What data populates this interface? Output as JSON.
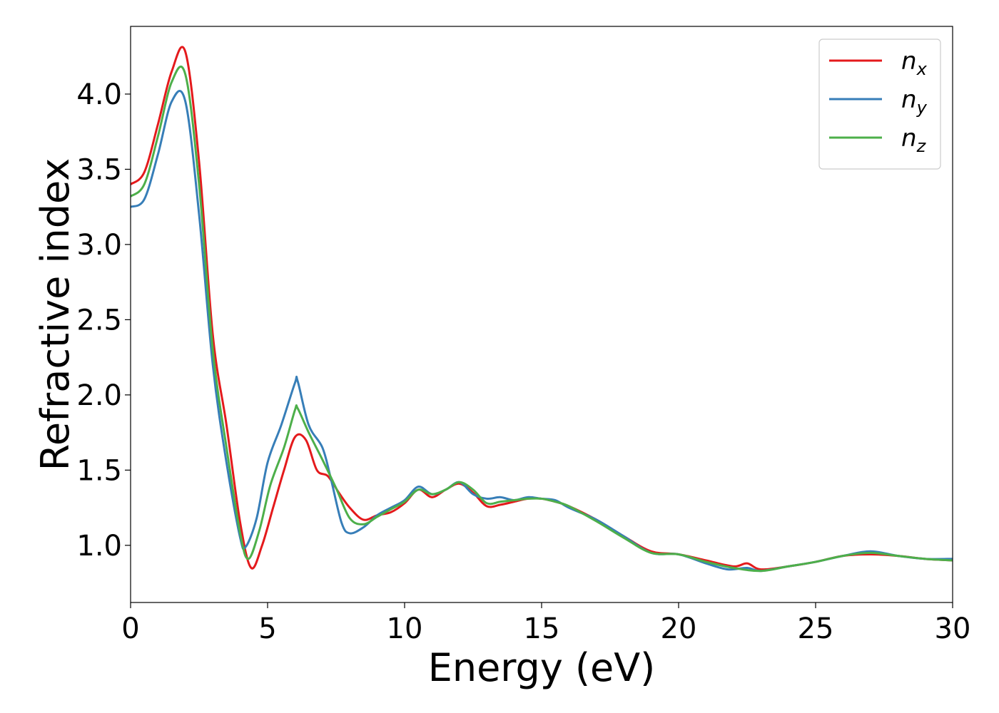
{
  "chart_data": {
    "type": "line",
    "xlabel": "Energy (eV)",
    "ylabel": "Refractive index",
    "xlim": [
      0,
      30
    ],
    "ylim": [
      0.62,
      4.45
    ],
    "xticks": [
      0,
      5,
      10,
      15,
      20,
      25,
      30
    ],
    "yticks": [
      1.0,
      1.5,
      2.0,
      2.5,
      3.0,
      3.5,
      4.0
    ],
    "xtick_labels": [
      "0",
      "5",
      "10",
      "15",
      "20",
      "25",
      "30"
    ],
    "ytick_labels": [
      "1.0",
      "1.5",
      "2.0",
      "2.5",
      "3.0",
      "3.5",
      "4.0"
    ],
    "grid": false,
    "legend_position": "top-right",
    "series": [
      {
        "name": "n",
        "subscript": "x",
        "color": "#e41a1c",
        "x": [
          0,
          0.5,
          1.0,
          1.5,
          2.0,
          2.5,
          3.0,
          3.5,
          4.0,
          4.4,
          4.8,
          5.2,
          5.6,
          6.0,
          6.4,
          6.8,
          7.2,
          7.6,
          8.0,
          8.5,
          9.0,
          9.5,
          10.0,
          10.5,
          11.0,
          11.5,
          12.0,
          12.5,
          13.0,
          13.5,
          14.0,
          14.5,
          15.0,
          15.5,
          16.0,
          17.0,
          18.0,
          19.0,
          20.0,
          21.0,
          22.0,
          22.5,
          23.0,
          24.0,
          25.0,
          26.0,
          27.0,
          28.0,
          29.0,
          30.0
        ],
        "y": [
          3.4,
          3.48,
          3.8,
          4.15,
          4.28,
          3.55,
          2.4,
          1.8,
          1.15,
          0.85,
          1.0,
          1.25,
          1.5,
          1.72,
          1.7,
          1.5,
          1.46,
          1.35,
          1.25,
          1.17,
          1.2,
          1.22,
          1.28,
          1.37,
          1.32,
          1.37,
          1.41,
          1.35,
          1.26,
          1.27,
          1.29,
          1.31,
          1.31,
          1.29,
          1.26,
          1.17,
          1.06,
          0.96,
          0.94,
          0.9,
          0.86,
          0.88,
          0.84,
          0.86,
          0.89,
          0.93,
          0.94,
          0.93,
          0.91,
          0.9
        ]
      },
      {
        "name": "n",
        "subscript": "y",
        "color": "#377eb8",
        "x": [
          0,
          0.5,
          1.0,
          1.5,
          2.0,
          2.5,
          3.0,
          3.5,
          4.0,
          4.2,
          4.6,
          5.0,
          5.5,
          6.0,
          6.1,
          6.5,
          7.0,
          7.3,
          7.7,
          8.0,
          8.5,
          9.0,
          9.5,
          10.0,
          10.5,
          11.0,
          11.5,
          12.0,
          12.5,
          13.0,
          13.5,
          14.0,
          14.5,
          15.0,
          15.5,
          16.0,
          17.0,
          18.0,
          19.0,
          20.0,
          21.0,
          21.8,
          22.5,
          23.0,
          24.0,
          25.0,
          26.0,
          27.0,
          28.0,
          29.0,
          30.0
        ],
        "y": [
          3.25,
          3.3,
          3.6,
          3.95,
          3.95,
          3.2,
          2.2,
          1.55,
          1.05,
          0.99,
          1.18,
          1.55,
          1.8,
          2.08,
          2.09,
          1.8,
          1.65,
          1.45,
          1.15,
          1.08,
          1.12,
          1.2,
          1.25,
          1.3,
          1.39,
          1.34,
          1.37,
          1.42,
          1.34,
          1.31,
          1.32,
          1.3,
          1.32,
          1.31,
          1.3,
          1.25,
          1.17,
          1.06,
          0.95,
          0.94,
          0.88,
          0.84,
          0.85,
          0.83,
          0.86,
          0.89,
          0.93,
          0.96,
          0.93,
          0.91,
          0.91
        ]
      },
      {
        "name": "n",
        "subscript": "z",
        "color": "#4daf4a",
        "x": [
          0,
          0.5,
          1.0,
          1.5,
          2.0,
          2.5,
          3.0,
          3.5,
          4.0,
          4.3,
          4.7,
          5.1,
          5.6,
          6.0,
          6.1,
          6.5,
          7.0,
          7.5,
          8.0,
          8.5,
          9.0,
          9.5,
          10.0,
          10.5,
          11.0,
          11.5,
          12.0,
          12.5,
          13.0,
          13.5,
          14.0,
          14.5,
          15.0,
          15.5,
          16.0,
          17.0,
          18.0,
          19.0,
          20.0,
          21.0,
          22.0,
          23.0,
          24.0,
          25.0,
          26.0,
          27.0,
          28.0,
          29.0,
          30.0
        ],
        "y": [
          3.32,
          3.4,
          3.72,
          4.08,
          4.13,
          3.4,
          2.3,
          1.65,
          1.08,
          0.91,
          1.1,
          1.4,
          1.65,
          1.9,
          1.91,
          1.75,
          1.57,
          1.38,
          1.18,
          1.14,
          1.19,
          1.24,
          1.29,
          1.37,
          1.34,
          1.37,
          1.42,
          1.37,
          1.28,
          1.29,
          1.3,
          1.31,
          1.31,
          1.29,
          1.26,
          1.16,
          1.05,
          0.95,
          0.94,
          0.89,
          0.85,
          0.83,
          0.86,
          0.89,
          0.93,
          0.95,
          0.93,
          0.91,
          0.9
        ]
      }
    ]
  }
}
